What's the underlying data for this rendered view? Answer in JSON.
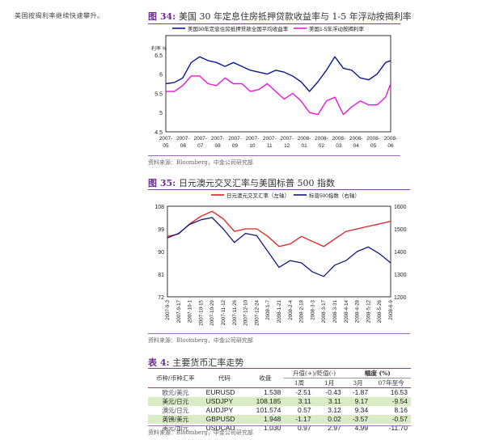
{
  "side_note": "美国按揭利率继续快速攀升。",
  "fig34": {
    "label": "图 34:",
    "title": "美国 30 年定息住房抵押贷款收益率与 1-5 年浮动按揭利率",
    "source": "资料来源：Bloomberg，中金公司研究部"
  },
  "fig35": {
    "label": "图 35:",
    "title": "日元澳元交叉汇率与美国标普 500 指数",
    "source": "资料来源：Bloomberg，中金公司研究部"
  },
  "chart_data": [
    {
      "type": "line",
      "title": "美国 30 年定息住房抵押贷款收益率与 1-5 年浮动按揭利率",
      "ylabel": "利率 %",
      "ylim": [
        4.5,
        7
      ],
      "yticks": [
        "4.5",
        "5",
        "5.5",
        "6",
        "6.5",
        "7"
      ],
      "x_ticks": [
        "2007-05",
        "2007-06",
        "2007-07",
        "2007-08",
        "2007-09",
        "2007-10",
        "2007-11",
        "2007-12",
        "2008-01",
        "2008-02",
        "2008-03",
        "2008-04",
        "2008-05",
        "2008-06"
      ],
      "x": [
        0,
        0.5,
        1,
        1.5,
        2,
        2.5,
        3,
        3.5,
        4,
        4.5,
        5,
        5.5,
        6,
        6.5,
        7,
        7.5,
        8,
        8.5,
        9,
        9.5,
        10,
        10.5,
        11,
        11.5,
        12,
        12.5,
        13,
        13.3
      ],
      "series": [
        {
          "name": "美国30年定息住房抵押贷款全国平均收益率",
          "color": "#0a1a8c",
          "values": [
            5.75,
            5.78,
            5.9,
            6.3,
            6.45,
            6.35,
            6.3,
            6.2,
            6.3,
            6.2,
            6.1,
            6.05,
            6.0,
            6.1,
            6.05,
            5.95,
            5.8,
            5.55,
            5.8,
            6.1,
            6.45,
            6.15,
            6.1,
            5.9,
            5.85,
            6.0,
            6.3,
            6.35
          ]
        },
        {
          "name": "美国1-5年浮动按揭利率",
          "color": "#e818d8",
          "values": [
            5.55,
            5.55,
            5.7,
            5.95,
            5.95,
            5.75,
            5.7,
            5.9,
            5.75,
            5.75,
            5.55,
            5.6,
            5.75,
            5.55,
            5.35,
            5.5,
            5.3,
            5.0,
            4.95,
            5.3,
            5.4,
            4.95,
            5.15,
            5.3,
            5.2,
            5.2,
            5.4,
            5.75
          ]
        }
      ]
    },
    {
      "type": "line",
      "title": "日元澳元交叉汇率与美国标普 500 指数",
      "ylim": [
        72,
        108
      ],
      "y2lim": [
        1200,
        1600
      ],
      "yticks": [
        "72",
        "81",
        "90",
        "99",
        "108"
      ],
      "y2ticks": [
        "1200",
        "1300",
        "1400",
        "1500",
        "1600"
      ],
      "x_ticks": [
        "2007-9-3",
        "2007-9-17",
        "2007-10-1",
        "2007-10-15",
        "2007-10-29",
        "2007-11-12",
        "2007-11-26",
        "2007-12-10",
        "2007-12-24",
        "2008-1-7",
        "2008-1-21",
        "2008-2-4",
        "2008-2-18",
        "2008-3-3",
        "2008-3-17",
        "2008-3-31",
        "2008-4-14",
        "2008-4-28",
        "2008-5-12",
        "2008-5-26",
        "2008-6-9"
      ],
      "x": [
        0,
        1,
        2,
        3,
        4,
        5,
        6,
        7,
        8,
        9,
        10,
        11,
        12,
        13,
        14,
        15,
        16,
        17,
        18,
        19,
        20
      ],
      "series": [
        {
          "name": "日元澳元交叉汇率（左轴）",
          "axis": "left",
          "color": "#e02020",
          "values": [
            96,
            97,
            101,
            104,
            106,
            103,
            98,
            99,
            99,
            96,
            92,
            93,
            96,
            94,
            92,
            95,
            98,
            99,
            100,
            101,
            102
          ]
        },
        {
          "name": "标普500指数（右轴）",
          "axis": "right",
          "color": "#10187a",
          "values": [
            1460,
            1480,
            1520,
            1540,
            1550,
            1500,
            1440,
            1480,
            1470,
            1400,
            1330,
            1360,
            1350,
            1310,
            1290,
            1340,
            1360,
            1400,
            1420,
            1390,
            1350
          ]
        }
      ]
    }
  ],
  "table4": {
    "label": "表 4:",
    "title": "主要货币汇率走势",
    "headers": {
      "pair_cn": "币种/币种汇率",
      "code": "代码",
      "rate": "收盘",
      "change_group": "升值(+)/贬值(-)",
      "amp_group": "幅度 (%)",
      "m1": "1周",
      "mo1": "1月",
      "m3": "3月",
      "ytd": "07年至今"
    },
    "rows": [
      {
        "cn": "欧元/美元",
        "code": "EURUSD",
        "rate": "1.538",
        "w1": "-2.51",
        "mo1": "-0.43",
        "m3": "-1.87",
        "ytd": "16.53",
        "hl": false
      },
      {
        "cn": "美元/日元",
        "code": "USDJPY",
        "rate": "108.185",
        "w1": "3.11",
        "mo1": "3.11",
        "m3": "9.17",
        "ytd": "-9.54",
        "hl": true
      },
      {
        "cn": "澳元/日元",
        "code": "AUDJPY",
        "rate": "101.574",
        "w1": "0.57",
        "mo1": "3.12",
        "m3": "9.34",
        "ytd": "8.16",
        "hl": false
      },
      {
        "cn": "英镑/美元",
        "code": "GBPUSD",
        "rate": "1.948",
        "w1": "-1.17",
        "mo1": "0.02",
        "m3": "-3.57",
        "ytd": "-0.57",
        "hl": true
      },
      {
        "cn": "美元/加元",
        "code": "USDCAD",
        "rate": "1.030",
        "w1": "0.97",
        "mo1": "2.97",
        "m3": "4.99",
        "ytd": "-11.70",
        "hl": false
      }
    ],
    "source": "资料来源：Bloomberg，中金公司研究部"
  }
}
